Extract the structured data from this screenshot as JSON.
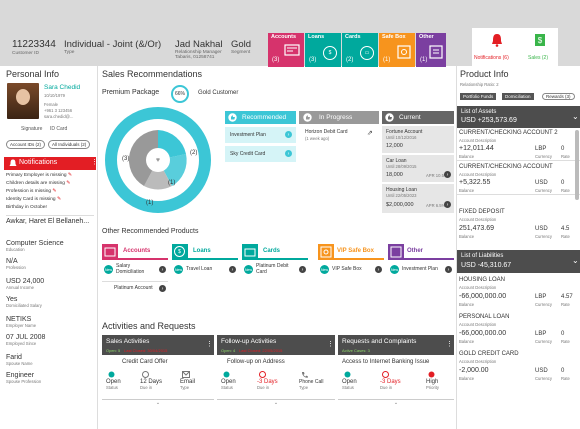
{
  "header": {
    "customer_id": "11223344",
    "customer_id_label": "Customer ID",
    "relationship": "Individual - Joint (&/Or)",
    "relationship_label": "Type",
    "manager": "Jad Nakhal",
    "manager_label": "Relationship Manager",
    "manager_branch": "Tabaris, 01258741",
    "segment": "Gold",
    "segment_label": "Segment"
  },
  "tiles": [
    {
      "label": "Accounts",
      "count": "(3)"
    },
    {
      "label": "Loans",
      "count": "(3)"
    },
    {
      "label": "Cards",
      "count": "(2)"
    },
    {
      "label": "Safe Box",
      "count": "(1)"
    },
    {
      "label": "Other",
      "count": "(1)"
    }
  ],
  "notif_button": {
    "label": "Notifications (6)"
  },
  "sales_button": {
    "label": "Sales (2)"
  },
  "personal": {
    "title": "Personal Info",
    "name": "Sara Chedid",
    "dob": "10/10/1979",
    "gender": "Female",
    "phone": "+961 3 123456",
    "email": "sara.chedid@...",
    "signature": "Signature",
    "idcard": "ID Card",
    "btn_account_ids": "Account IDs (2)",
    "btn_all_individuals": "All Individuals (2)"
  },
  "notifications": {
    "title": "Notifications",
    "items": [
      "Primary Employer is missing",
      "Children details are missing",
      "Profession is missing",
      "Identity Card is missing",
      "Birthday in October"
    ]
  },
  "details": [
    {
      "value": "Awkar, Haret El Bellaneh...",
      "label": ""
    },
    {
      "value": "Computer Science",
      "label": "Education"
    },
    {
      "value": "N/A",
      "label": "Profession"
    },
    {
      "value": "USD 24,000",
      "label": "Annual Income"
    },
    {
      "value": "Yes",
      "label": "Domiciliated Salary"
    },
    {
      "value": "NETIKS",
      "label": "Employer Name"
    },
    {
      "value": "07 JUL 2008",
      "label": "Employed Since"
    },
    {
      "value": "Farid",
      "label": "Spouse Name"
    },
    {
      "value": "Engineer",
      "label": "Spouse Profession"
    }
  ],
  "sales": {
    "title": "Sales Recommendations",
    "package": "Premium Package",
    "package_pct": "66%",
    "package_name": "Gold Customer",
    "donut_labels": [
      "(2)",
      "(1)",
      "(3)",
      "(1)"
    ],
    "recommended": {
      "title": "Recommended",
      "items": [
        "Investment Plan",
        "Sky Credit Card"
      ]
    },
    "in_progress": {
      "title": "In Progress",
      "item": "Horizon Debit Card",
      "sub": "(1 week ago)"
    },
    "current": {
      "title": "Current",
      "items": [
        {
          "name": "Fortune Account",
          "date": "Until 10/12/2016",
          "amount": "12,000",
          "apr": ""
        },
        {
          "name": "Car Loan",
          "date": "Until 28/09/2015",
          "amount": "18,000",
          "apr": "APR 10.5%"
        },
        {
          "name": "Housing Loan",
          "date": "Until 22/05/2023",
          "amount": "$2,000,000",
          "apr": "APR 6.5%"
        }
      ]
    }
  },
  "other_rec": {
    "title": "Other Recommended Products",
    "cols": [
      {
        "label": "Accounts",
        "items": [
          "Salary Domiciliation",
          "Platinum Account"
        ]
      },
      {
        "label": "Loans",
        "items": [
          "Travel Loan"
        ]
      },
      {
        "label": "Cards",
        "items": [
          "Platinum Debit Card"
        ]
      },
      {
        "label": "VIP Safe Box",
        "items": [
          "VIP Safe Box"
        ]
      },
      {
        "label": "Other",
        "items": [
          "Investment Plan"
        ]
      }
    ]
  },
  "activities": {
    "title": "Activities and Requests",
    "cols": [
      {
        "title": "Sales Activities",
        "sub": "Open: 5",
        "sub2": "Last Closed: 30/04/2015",
        "item": "Credit Card Offer",
        "status": "Open",
        "status_l": "Status",
        "due": "12 Days",
        "due_l": "Due in",
        "type": "Email",
        "type_l": "Type"
      },
      {
        "title": "Follow-up Activities",
        "sub": "Open: 4",
        "sub2": "Last Closed: 22/05/2015",
        "item": "Follow-up on Address",
        "status": "Open",
        "status_l": "Status",
        "due": "-3 Days",
        "due_l": "Due in",
        "type": "Phone Call",
        "type_l": "Type"
      },
      {
        "title": "Requests and Complaints",
        "sub": "Active Cases: 3",
        "sub2": "",
        "item": "Access to Internet Banking Issue",
        "status": "Open",
        "status_l": "Status",
        "due": "-3 Days",
        "due_l": "Due in",
        "type": "High",
        "type_l": "Priority"
      }
    ]
  },
  "product": {
    "title": "Product Info",
    "ratio": "Relationship Ratio: 2",
    "tabs": [
      "Portfolio Funds",
      "Domiciliation",
      "Rewards (3)"
    ],
    "assets_title": "List of Assets",
    "assets_total": "USD +253,573.69",
    "assets": [
      {
        "name": "CURRENT/CHECKING ACCOUNT 2",
        "desc": "Account Description",
        "balance": "+12,011.44",
        "cur": "LBP",
        "rate": "0"
      },
      {
        "name": "CURRENT/CHECKING ACCOUNT",
        "desc": "Account Description",
        "balance": "+5,322.55",
        "cur": "USD",
        "rate": "0"
      },
      {
        "name": "FIXED DEPOSIT",
        "desc": "Account Description",
        "balance": "251,473.69",
        "cur": "USD",
        "rate": "4.5"
      }
    ],
    "liab_title": "List of Liabilities",
    "liab_total": "USD -45,310.67",
    "liabilities": [
      {
        "name": "HOUSING LOAN",
        "desc": "Account Description",
        "balance": "-66,000,000.00",
        "cur": "LBP",
        "rate": "4.57"
      },
      {
        "name": "PERSONAL LOAN",
        "desc": "Account Description",
        "balance": "-66,000,000.00",
        "cur": "LBP",
        "rate": "0"
      },
      {
        "name": "GOLD CREDIT CARD",
        "desc": "Account Description",
        "balance": "-2,000.00",
        "cur": "USD",
        "rate": "0"
      }
    ],
    "balance_l": "Balance",
    "cur_l": "Currency",
    "rate_l": "Rate"
  }
}
